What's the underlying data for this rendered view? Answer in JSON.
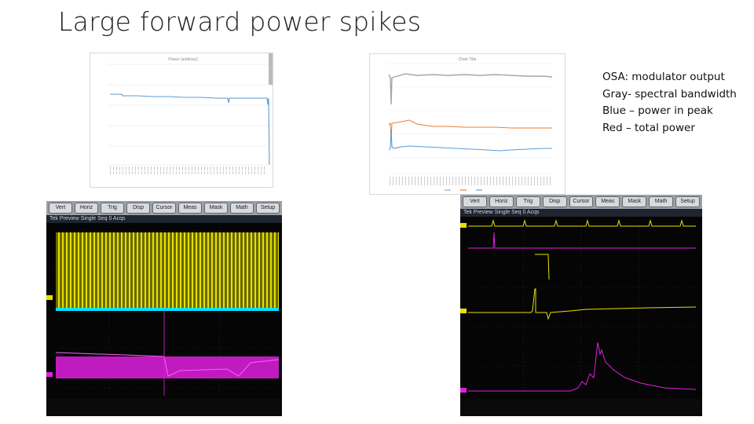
{
  "slide": {
    "title": "Large forward power spikes"
  },
  "legend": {
    "lines": [
      "OSA: modulator output",
      "Gray- spectral bandwidth",
      "Blue – power in peak",
      "Red – total power"
    ]
  },
  "charts": {
    "left": {
      "title": "Power (arbitrary)",
      "series_color": "#5b9bd5"
    },
    "right": {
      "title": "Chart Title",
      "colors": {
        "bandwidth": "#a6a6a6",
        "total": "#ed7d31",
        "peak": "#5b9bd5"
      }
    }
  },
  "scopes": {
    "left": {
      "menu": [
        "Vert",
        "Horiz",
        "Trig",
        "Disp",
        "Cursor",
        "Meas",
        "Mask",
        "Math",
        "Setup"
      ],
      "status": "Tek   Preview  Single Seq        0 Acqs",
      "ch1_color": "#e8e000",
      "ch2_color": "#00e5ff",
      "ch3_color": "#e020e0"
    },
    "right": {
      "menu": [
        "Vert",
        "Horiz",
        "Trig",
        "Disp",
        "Cursor",
        "Meas",
        "Mask",
        "Math",
        "Setup"
      ],
      "status": "Tek   Preview  Single Seq        0 Acqs",
      "ch1_color": "#e8e000",
      "ch3_color": "#e020e0"
    }
  }
}
